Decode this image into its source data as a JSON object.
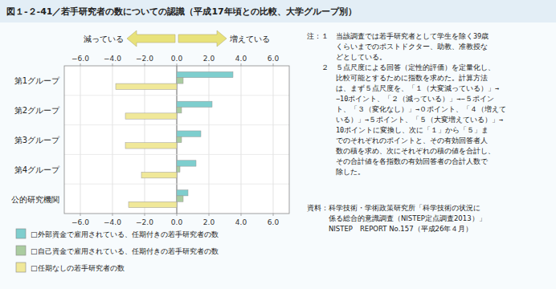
{
  "chart_data": {
    "type": "bar",
    "orientation": "horizontal",
    "title": "図１-２-41／若手研究者の数についての認識（平成17年頃との比較、大学グループ別）",
    "categories": [
      "第1グループ",
      "第2グループ",
      "第3グループ",
      "第4グループ",
      "公的研究機関"
    ],
    "series": [
      {
        "name": "□外部資金で雇用されている、任期付きの若手研究者の数",
        "color": "#7ECECE",
        "values": [
          3.5,
          2.2,
          1.5,
          1.2,
          0.7
        ]
      },
      {
        "name": "□自己資金で雇用されている、任期付きの若手研究者の数",
        "color": "#AACCA0",
        "values": [
          0.4,
          0.3,
          0.3,
          0.2,
          0.4
        ]
      },
      {
        "name": "□任期なしの若手研究者の数",
        "color": "#F0E899",
        "values": [
          -3.8,
          -3.2,
          -3.2,
          -2.2,
          -3.0
        ]
      }
    ],
    "xlim": [
      -7.0,
      7.0
    ],
    "xticks": [
      {
        "value": -6.0,
        "label": "−6.0"
      },
      {
        "value": -4.0,
        "label": "−4.0"
      },
      {
        "value": -2.0,
        "label": "−2.0"
      },
      {
        "value": 0.0,
        "label": "0.0"
      },
      {
        "value": 2.0,
        "label": "2.0"
      },
      {
        "value": 4.0,
        "label": "4.0"
      },
      {
        "value": 6.0,
        "label": "6.0"
      }
    ],
    "grid": true,
    "legend": "bottom",
    "annotations": [
      "減っている",
      "増えている"
    ],
    "notes": [
      "注：１　当該調査では若手研究者として学生を除く39歳",
      "　　　　くらいまでのポストドクター、助教、准教授な",
      "　　　　どとしている。",
      "　　２　５点尺度による回答（定性的評価）を定量化し、",
      "　　　　比較可能とするために指数を求めた。計算方法",
      "　　　　は、まず５点尺度を、「１（大変減っている）」→",
      "　　　　−10ポイント、「２（減っている）」→−５ポイン",
      "　　　　ト、「３（変化なし）」→０ポイント、「４（増えて",
      "　　　　いる）」→５ポイント、「５（大変増えている）」→",
      "　　　　10ポイントに変換し、次に「１」から「５」ま",
      "　　　　でのそれぞれのポイントと、その有効回答者人",
      "　　　　数の積を求め、次にそれぞれの積の値を合計し、",
      "　　　　その合計値を各指数の有効回答者の合計人数で",
      "　　　　除した。"
    ],
    "source": [
      "資料：科学技術・学術政策研究所「科学技術の状況に",
      "　　　係る総合的意識調査（NISTEP定点調査2013）」",
      "　　　NISTEP　REPORT No.157（平成26年４月）"
    ]
  }
}
